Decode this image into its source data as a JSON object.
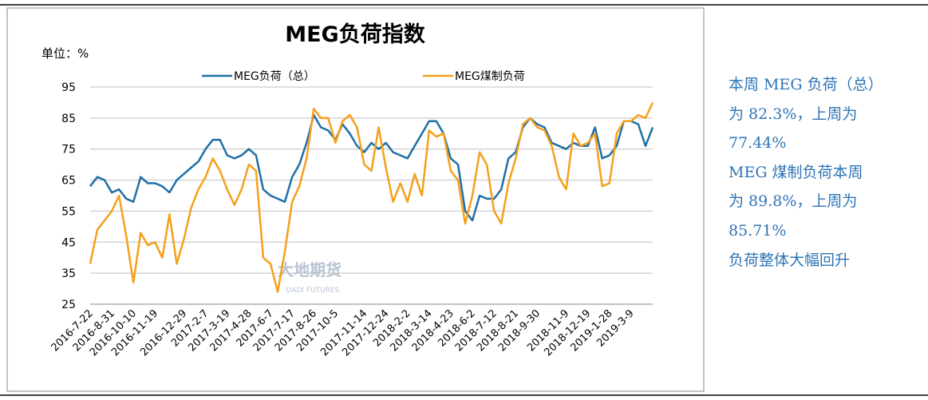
{
  "chart_data": {
    "type": "line",
    "title": "MEG负荷指数",
    "unit_label": "单位：%",
    "watermark": [
      "大地期货",
      "DADI FUTURES"
    ],
    "categories": [
      "2016-7-22",
      null,
      null,
      "2016-8-31",
      null,
      null,
      "2016-10-10",
      null,
      null,
      "2016-11-19",
      null,
      null,
      null,
      "2016-12-29",
      null,
      null,
      "2017-2-7",
      null,
      null,
      "2017-3-19",
      null,
      null,
      "2017-4-28",
      null,
      null,
      "2017-6-7",
      null,
      null,
      "2017-7-17",
      null,
      null,
      "2017-8-26",
      null,
      null,
      "2017-10-5",
      null,
      null,
      null,
      "2017-11-14",
      null,
      null,
      "2017-12-24",
      null,
      null,
      "2018-2-2",
      null,
      null,
      "2018-3-14",
      null,
      null,
      "2018-4-23",
      null,
      null,
      "2018-6-2",
      null,
      null,
      "2018-7-12",
      null,
      null,
      "2018-8-21",
      null,
      null,
      "2018-9-30",
      null,
      null,
      null,
      "2018-11-9",
      null,
      null,
      "2018-12-19",
      null,
      null,
      "2019-1-28",
      null,
      null,
      "2019-3-9",
      null,
      null,
      null
    ],
    "series": [
      {
        "name": "MEG负荷（总）",
        "color": "#1f6fa6",
        "values": [
          63,
          66,
          65,
          61,
          62,
          59,
          58,
          66,
          64,
          64,
          63,
          61,
          65,
          67,
          69,
          71,
          75,
          78,
          78,
          73,
          72,
          73,
          75,
          73,
          62,
          60,
          59,
          58,
          66,
          70,
          77,
          86,
          82,
          81,
          78,
          83,
          80,
          76,
          74,
          77,
          75,
          77,
          74,
          73,
          72,
          76,
          80,
          84,
          84,
          80,
          72,
          70,
          55,
          52,
          60,
          59,
          59,
          62,
          72,
          74,
          82,
          85,
          83,
          82,
          77,
          76,
          75,
          77,
          76,
          76,
          82,
          72,
          73,
          76,
          84,
          84,
          83,
          76,
          82
        ]
      },
      {
        "name": "MEG煤制负荷",
        "color": "#f5a01a",
        "values": [
          38,
          49,
          52,
          55,
          60,
          47,
          32,
          48,
          44,
          45,
          40,
          54,
          38,
          46,
          56,
          62,
          66,
          72,
          68,
          62,
          57,
          62,
          70,
          68,
          40,
          38,
          29,
          42,
          58,
          63,
          72,
          88,
          85,
          85,
          77,
          84,
          86,
          82,
          70,
          68,
          82,
          69,
          58,
          64,
          58,
          67,
          60,
          81,
          79,
          80,
          68,
          65,
          51,
          60,
          74,
          70,
          55,
          51,
          64,
          72,
          83,
          85,
          82,
          81,
          76,
          66,
          62,
          80,
          76,
          77,
          80,
          63,
          64,
          80,
          84,
          84,
          86,
          85,
          90
        ]
      }
    ],
    "ylim": [
      25,
      95
    ],
    "yticks": [
      25,
      35,
      45,
      55,
      65,
      75,
      85,
      95
    ],
    "grid": true
  },
  "side_text": {
    "lines": [
      "本周 MEG 负荷（总）",
      "为 82.3%，上周为",
      "77.44%",
      "MEG 煤制负荷本周",
      "为 89.8%，上周为",
      "85.71%",
      "负荷整体大幅回升"
    ]
  }
}
